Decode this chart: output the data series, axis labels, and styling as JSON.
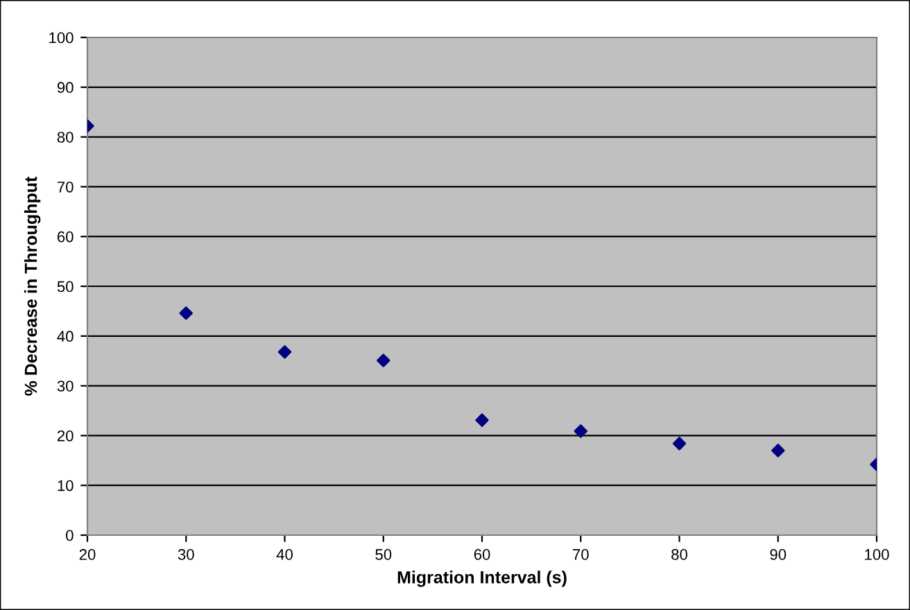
{
  "chart_data": {
    "type": "scatter",
    "xlabel": "Migration Interval (s)",
    "ylabel": "% Decrease in Throughput",
    "x": [
      20,
      30,
      40,
      50,
      60,
      70,
      80,
      90,
      100
    ],
    "series": [
      {
        "color": "#000080",
        "values": [
          82.2,
          44.6,
          36.8,
          35.1,
          23.1,
          20.9,
          18.4,
          17.0,
          14.2
        ]
      }
    ],
    "xlim": [
      20,
      100
    ],
    "xticks": [
      20,
      30,
      40,
      50,
      60,
      70,
      80,
      90,
      100
    ],
    "ylim": [
      0,
      100
    ],
    "yticks": [
      0,
      10,
      20,
      30,
      40,
      50,
      60,
      70,
      80,
      90,
      100
    ],
    "grid": "y",
    "marker": "diamond"
  }
}
